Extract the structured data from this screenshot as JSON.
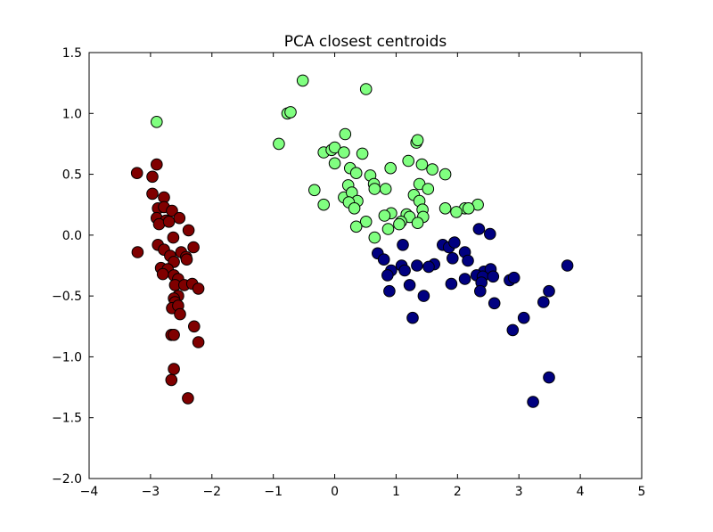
{
  "chart_data": {
    "type": "scatter",
    "title": "PCA closest centroids",
    "xlabel": "",
    "ylabel": "",
    "xlim": [
      -4,
      5
    ],
    "ylim": [
      -2.0,
      1.5
    ],
    "xticks": [
      -4,
      -3,
      -2,
      -1,
      0,
      1,
      2,
      3,
      4,
      5
    ],
    "xtick_labels": [
      "−4",
      "−3",
      "−2",
      "−1",
      "0",
      "1",
      "2",
      "3",
      "4",
      "5"
    ],
    "yticks": [
      -2.0,
      -1.5,
      -1.0,
      -0.5,
      0.0,
      0.5,
      1.0,
      1.5
    ],
    "ytick_labels": [
      "−2.0",
      "−1.5",
      "−1.0",
      "−0.5",
      "0.0",
      "0.5",
      "1.0",
      "1.5"
    ],
    "grid": false,
    "series": [
      {
        "color": "#800000",
        "points": [
          [
            -3.22,
            0.51
          ],
          [
            -2.97,
            0.48
          ],
          [
            -2.9,
            0.58
          ],
          [
            -2.97,
            0.34
          ],
          [
            -2.78,
            0.31
          ],
          [
            -2.88,
            0.22
          ],
          [
            -2.78,
            0.23
          ],
          [
            -2.65,
            0.2
          ],
          [
            -2.53,
            0.14
          ],
          [
            -2.9,
            0.14
          ],
          [
            -2.75,
            0.12
          ],
          [
            -2.86,
            0.09
          ],
          [
            -2.7,
            0.11
          ],
          [
            -2.38,
            0.04
          ],
          [
            -2.63,
            -0.02
          ],
          [
            -2.88,
            -0.08
          ],
          [
            -2.78,
            -0.12
          ],
          [
            -2.3,
            -0.1
          ],
          [
            -2.68,
            -0.17
          ],
          [
            -2.5,
            -0.14
          ],
          [
            -2.42,
            -0.18
          ],
          [
            -2.41,
            -0.2
          ],
          [
            -2.62,
            -0.22
          ],
          [
            -3.21,
            -0.14
          ],
          [
            -2.83,
            -0.27
          ],
          [
            -2.72,
            -0.28
          ],
          [
            -2.8,
            -0.32
          ],
          [
            -2.62,
            -0.33
          ],
          [
            -2.55,
            -0.36
          ],
          [
            -2.6,
            -0.41
          ],
          [
            -2.45,
            -0.41
          ],
          [
            -2.32,
            -0.4
          ],
          [
            -2.22,
            -0.44
          ],
          [
            -2.55,
            -0.5
          ],
          [
            -2.62,
            -0.52
          ],
          [
            -2.6,
            -0.55
          ],
          [
            -2.65,
            -0.6
          ],
          [
            -2.55,
            -0.58
          ],
          [
            -2.52,
            -0.65
          ],
          [
            -2.29,
            -0.75
          ],
          [
            -2.66,
            -0.82
          ],
          [
            -2.62,
            -0.82
          ],
          [
            -2.22,
            -0.88
          ],
          [
            -2.62,
            -1.1
          ],
          [
            -2.66,
            -1.19
          ],
          [
            -2.39,
            -1.34
          ]
        ]
      },
      {
        "color": "#80ff80",
        "points": [
          [
            -2.9,
            0.93
          ],
          [
            -0.52,
            1.27
          ],
          [
            0.51,
            1.2
          ],
          [
            -0.77,
            1.0
          ],
          [
            -0.72,
            1.01
          ],
          [
            -0.91,
            0.75
          ],
          [
            -0.18,
            0.68
          ],
          [
            -0.05,
            0.7
          ],
          [
            0.0,
            0.72
          ],
          [
            0.17,
            0.83
          ],
          [
            1.33,
            0.76
          ],
          [
            1.35,
            0.78
          ],
          [
            0.15,
            0.68
          ],
          [
            0.45,
            0.67
          ],
          [
            0.0,
            0.59
          ],
          [
            0.25,
            0.55
          ],
          [
            0.35,
            0.51
          ],
          [
            0.91,
            0.55
          ],
          [
            1.2,
            0.61
          ],
          [
            1.42,
            0.58
          ],
          [
            1.59,
            0.54
          ],
          [
            1.8,
            0.5
          ],
          [
            0.58,
            0.49
          ],
          [
            0.64,
            0.42
          ],
          [
            0.22,
            0.41
          ],
          [
            0.65,
            0.38
          ],
          [
            0.83,
            0.38
          ],
          [
            -0.33,
            0.37
          ],
          [
            1.38,
            0.42
          ],
          [
            1.52,
            0.38
          ],
          [
            0.15,
            0.31
          ],
          [
            0.28,
            0.35
          ],
          [
            1.29,
            0.33
          ],
          [
            0.37,
            0.28
          ],
          [
            0.23,
            0.27
          ],
          [
            1.38,
            0.28
          ],
          [
            -0.18,
            0.25
          ],
          [
            0.32,
            0.22
          ],
          [
            2.33,
            0.25
          ],
          [
            2.12,
            0.22
          ],
          [
            2.18,
            0.22
          ],
          [
            1.8,
            0.22
          ],
          [
            1.43,
            0.21
          ],
          [
            1.98,
            0.19
          ],
          [
            0.92,
            0.18
          ],
          [
            0.81,
            0.16
          ],
          [
            1.17,
            0.17
          ],
          [
            1.22,
            0.15
          ],
          [
            1.08,
            0.11
          ],
          [
            1.44,
            0.15
          ],
          [
            1.35,
            0.1
          ],
          [
            0.51,
            0.11
          ],
          [
            0.35,
            0.07
          ],
          [
            0.87,
            0.05
          ],
          [
            1.05,
            0.09
          ],
          [
            0.65,
            -0.02
          ]
        ]
      },
      {
        "color": "#000080",
        "points": [
          [
            2.35,
            0.05
          ],
          [
            2.53,
            0.01
          ],
          [
            1.11,
            -0.08
          ],
          [
            1.76,
            -0.08
          ],
          [
            1.86,
            -0.1
          ],
          [
            1.95,
            -0.06
          ],
          [
            0.7,
            -0.15
          ],
          [
            0.8,
            -0.2
          ],
          [
            1.92,
            -0.19
          ],
          [
            1.62,
            -0.24
          ],
          [
            2.12,
            -0.14
          ],
          [
            2.17,
            -0.21
          ],
          [
            1.34,
            -0.25
          ],
          [
            1.09,
            -0.25
          ],
          [
            1.14,
            -0.29
          ],
          [
            1.53,
            -0.26
          ],
          [
            0.92,
            -0.29
          ],
          [
            0.86,
            -0.33
          ],
          [
            2.43,
            -0.3
          ],
          [
            2.54,
            -0.28
          ],
          [
            2.31,
            -0.33
          ],
          [
            2.41,
            -0.34
          ],
          [
            2.58,
            -0.34
          ],
          [
            2.12,
            -0.36
          ],
          [
            1.9,
            -0.4
          ],
          [
            2.39,
            -0.39
          ],
          [
            2.85,
            -0.37
          ],
          [
            2.92,
            -0.35
          ],
          [
            3.79,
            -0.25
          ],
          [
            1.22,
            -0.41
          ],
          [
            0.89,
            -0.46
          ],
          [
            2.37,
            -0.46
          ],
          [
            1.45,
            -0.5
          ],
          [
            3.49,
            -0.46
          ],
          [
            3.4,
            -0.55
          ],
          [
            2.6,
            -0.56
          ],
          [
            3.08,
            -0.68
          ],
          [
            1.27,
            -0.68
          ],
          [
            2.9,
            -0.78
          ],
          [
            3.49,
            -1.17
          ],
          [
            3.23,
            -1.37
          ]
        ]
      }
    ]
  }
}
